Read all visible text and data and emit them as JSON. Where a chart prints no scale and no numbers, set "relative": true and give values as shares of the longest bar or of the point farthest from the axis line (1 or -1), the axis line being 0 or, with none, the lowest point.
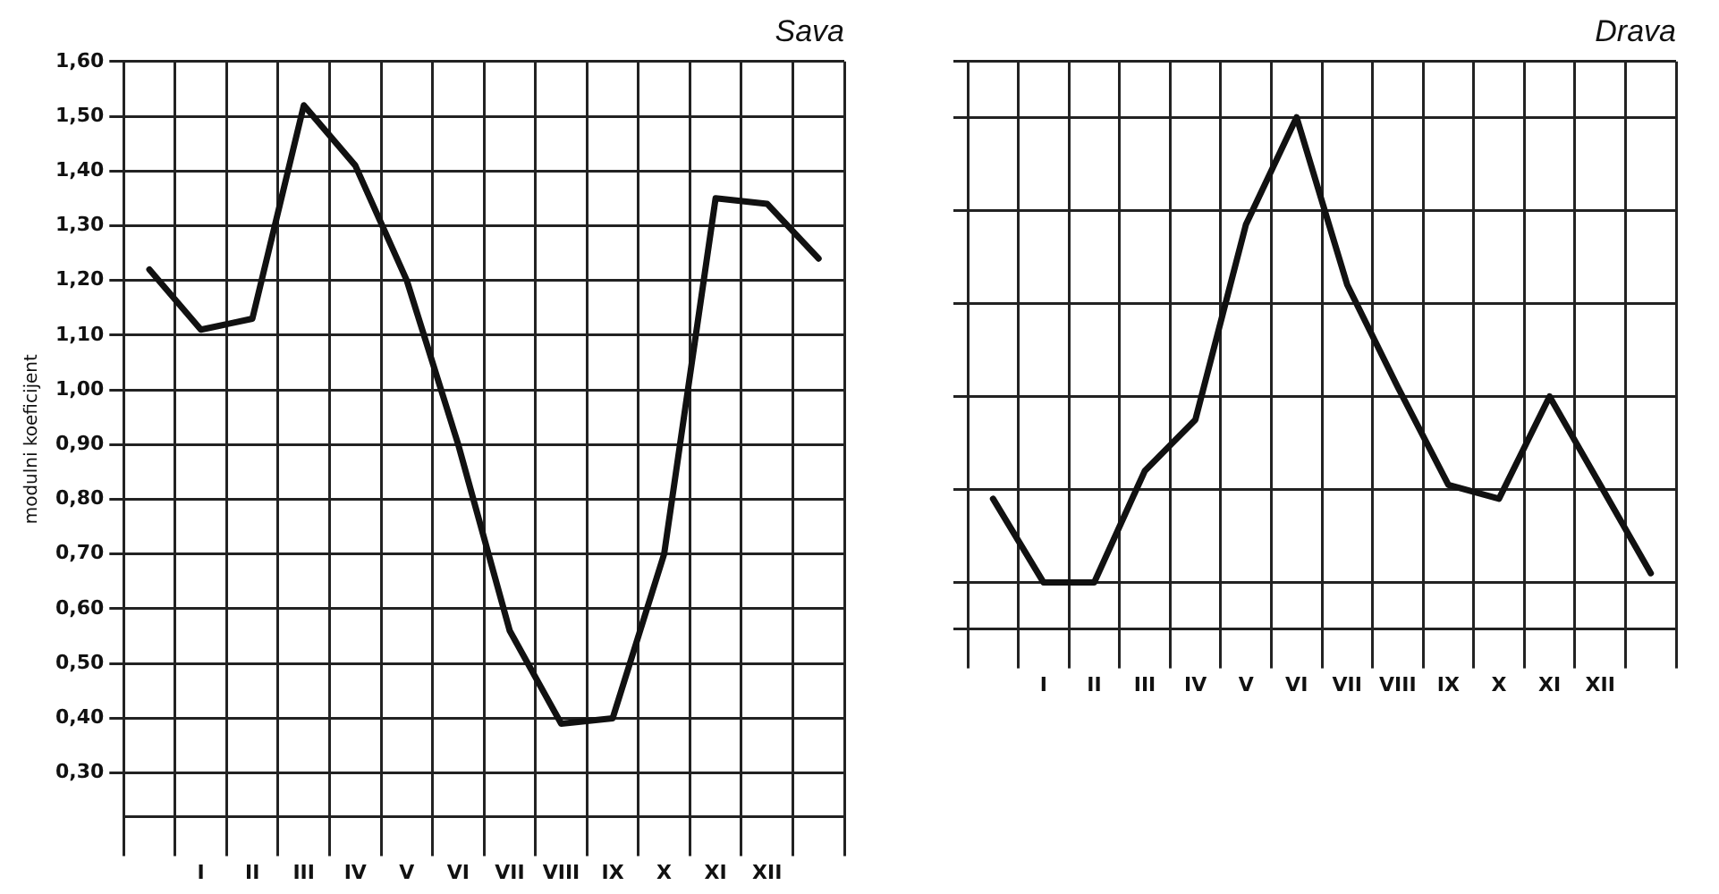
{
  "chart_data": [
    {
      "type": "line",
      "title": "Sava",
      "ylabel": "modulni koeficijent",
      "categories": [
        null,
        "I",
        "II",
        "III",
        "IV",
        "V",
        "VI",
        "VII",
        "VIII",
        "IX",
        "X",
        "XI",
        "XII",
        null
      ],
      "values": [
        1.22,
        1.11,
        1.13,
        1.52,
        1.41,
        1.2,
        0.9,
        0.56,
        0.39,
        0.4,
        0.7,
        1.35,
        1.34,
        1.24
      ],
      "color": "#111111",
      "ylim": [
        0.22,
        1.6
      ],
      "yticks": [
        {
          "value": 0.3,
          "label": "0,30"
        },
        {
          "value": 0.4,
          "label": "0,40"
        },
        {
          "value": 0.5,
          "label": "0,50"
        },
        {
          "value": 0.6,
          "label": "0,60"
        },
        {
          "value": 0.7,
          "label": "0,70"
        },
        {
          "value": 0.8,
          "label": "0,80"
        },
        {
          "value": 0.9,
          "label": "0,90"
        },
        {
          "value": 1.0,
          "label": "1,00"
        },
        {
          "value": 1.1,
          "label": "1,10"
        },
        {
          "value": 1.2,
          "label": "1,20"
        },
        {
          "value": 1.3,
          "label": "1,30"
        },
        {
          "value": 1.4,
          "label": "1,40"
        },
        {
          "value": 1.5,
          "label": "1,50"
        },
        {
          "value": 1.6,
          "label": "1,60"
        }
      ],
      "grid": true,
      "legend": false,
      "marker": "none",
      "line_style": "solid"
    },
    {
      "type": "line",
      "title": "Drava",
      "categories": [
        null,
        "I",
        "II",
        "III",
        "IV",
        "V",
        "VI",
        "VII",
        "VIII",
        "IX",
        "X",
        "XI",
        "XII",
        null
      ],
      "values": [
        0.18,
        0,
        0,
        0.24,
        0.35,
        0.77,
        1,
        0.64,
        0.42,
        0.21,
        0.18,
        0.4,
        0.21,
        0.02
      ],
      "color": "#111111",
      "relative": true,
      "grid": true,
      "legend": false,
      "marker": "none",
      "line_style": "solid"
    }
  ]
}
